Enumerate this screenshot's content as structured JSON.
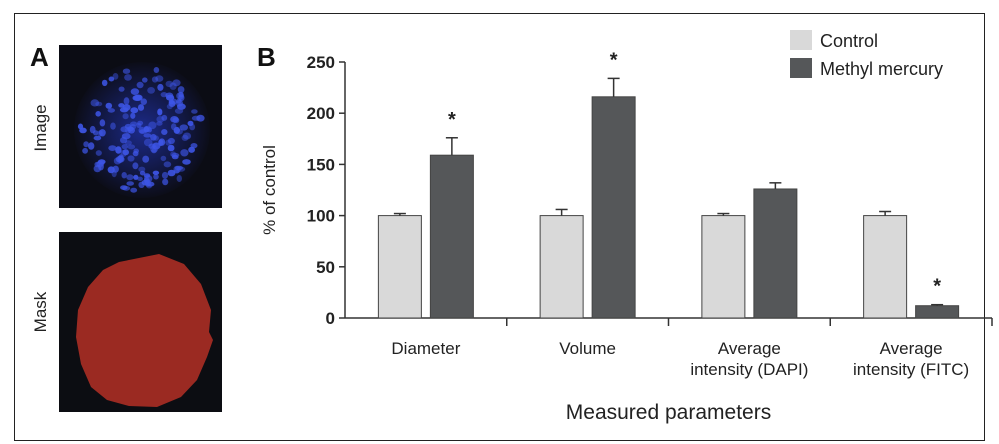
{
  "panel_a": {
    "letter": "A",
    "image_label": "Image",
    "mask_label": "Mask"
  },
  "panel_b": {
    "letter": "B"
  },
  "colors": {
    "control": "#d9d9d9",
    "methyl_mercury": "#555759",
    "nuclei": "#3d55e6",
    "mask": "#9b2a22"
  },
  "chart_data": {
    "type": "bar",
    "categories": [
      "Diameter",
      "Volume",
      "Average\nintensity (DAPI)",
      "Average\nintensity (FITC)"
    ],
    "series": [
      {
        "name": "Control",
        "values": [
          100,
          100,
          100,
          100
        ],
        "errors": [
          2,
          6,
          2,
          4
        ]
      },
      {
        "name": "Methyl mercury",
        "values": [
          159,
          216,
          126,
          12
        ],
        "errors": [
          17,
          18,
          6,
          1
        ]
      }
    ],
    "significance": [
      "*",
      "*",
      "",
      "*"
    ],
    "xlabel": "Measured parameters",
    "ylabel": "% of control",
    "ylim": [
      0,
      250
    ],
    "yticks": [
      0,
      50,
      100,
      150,
      200,
      250
    ],
    "grid": false,
    "legend": "top-right"
  }
}
